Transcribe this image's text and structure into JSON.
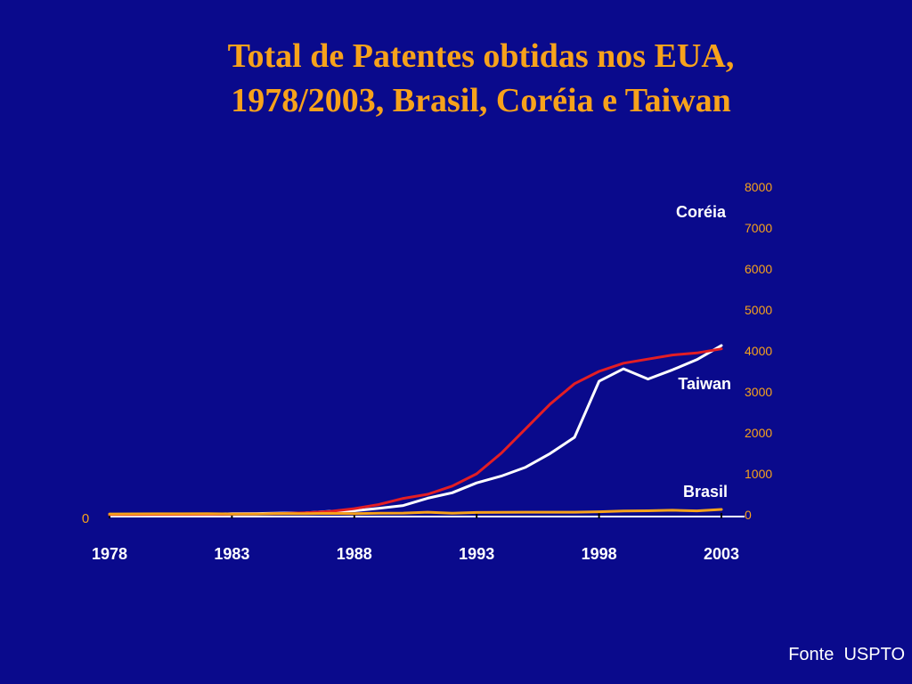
{
  "title": {
    "line1": "Total de Patentes obtidas nos EUA,",
    "line2": "1978/2003, Brasil, Coréia e Taiwan"
  },
  "source": "Fonte  USPTO",
  "chart_data": {
    "type": "line",
    "x": [
      1978,
      1979,
      1980,
      1981,
      1982,
      1983,
      1984,
      1985,
      1986,
      1987,
      1988,
      1989,
      1990,
      1991,
      1992,
      1993,
      1994,
      1995,
      1996,
      1997,
      1998,
      1999,
      2000,
      2001,
      2002,
      2003
    ],
    "xticks": [
      1978,
      1983,
      1988,
      1993,
      1998,
      2003
    ],
    "xlim": [
      1978,
      2003
    ],
    "yticks": [
      0,
      1000,
      2000,
      3000,
      4000,
      5000,
      6000,
      7000,
      8000
    ],
    "ylim": [
      0,
      8000
    ],
    "left_axis_label": "0",
    "grid": false,
    "series": [
      {
        "name": "Coréia",
        "color": "#FFFFFF",
        "values": [
          5,
          10,
          8,
          17,
          14,
          26,
          30,
          41,
          46,
          84,
          97,
          159,
          225,
          405,
          538,
          779,
          943,
          1161,
          1493,
          1891,
          3259,
          3562,
          3314,
          3538,
          3786,
          4132
        ]
      },
      {
        "name": "Taiwan",
        "color": "#E31E24",
        "values": [
          5,
          6,
          8,
          10,
          12,
          15,
          20,
          30,
          50,
          80,
          150,
          250,
          400,
          500,
          700,
          1000,
          1500,
          2100,
          2700,
          3200,
          3500,
          3700,
          3800,
          3900,
          3950,
          4050
        ]
      },
      {
        "name": "Brasil",
        "color": "#F7A21B",
        "values": [
          20,
          22,
          24,
          23,
          26,
          20,
          20,
          30,
          27,
          34,
          29,
          36,
          41,
          62,
          40,
          57,
          60,
          63,
          63,
          62,
          74,
          91,
          98,
          110,
          96,
          130
        ]
      }
    ]
  }
}
